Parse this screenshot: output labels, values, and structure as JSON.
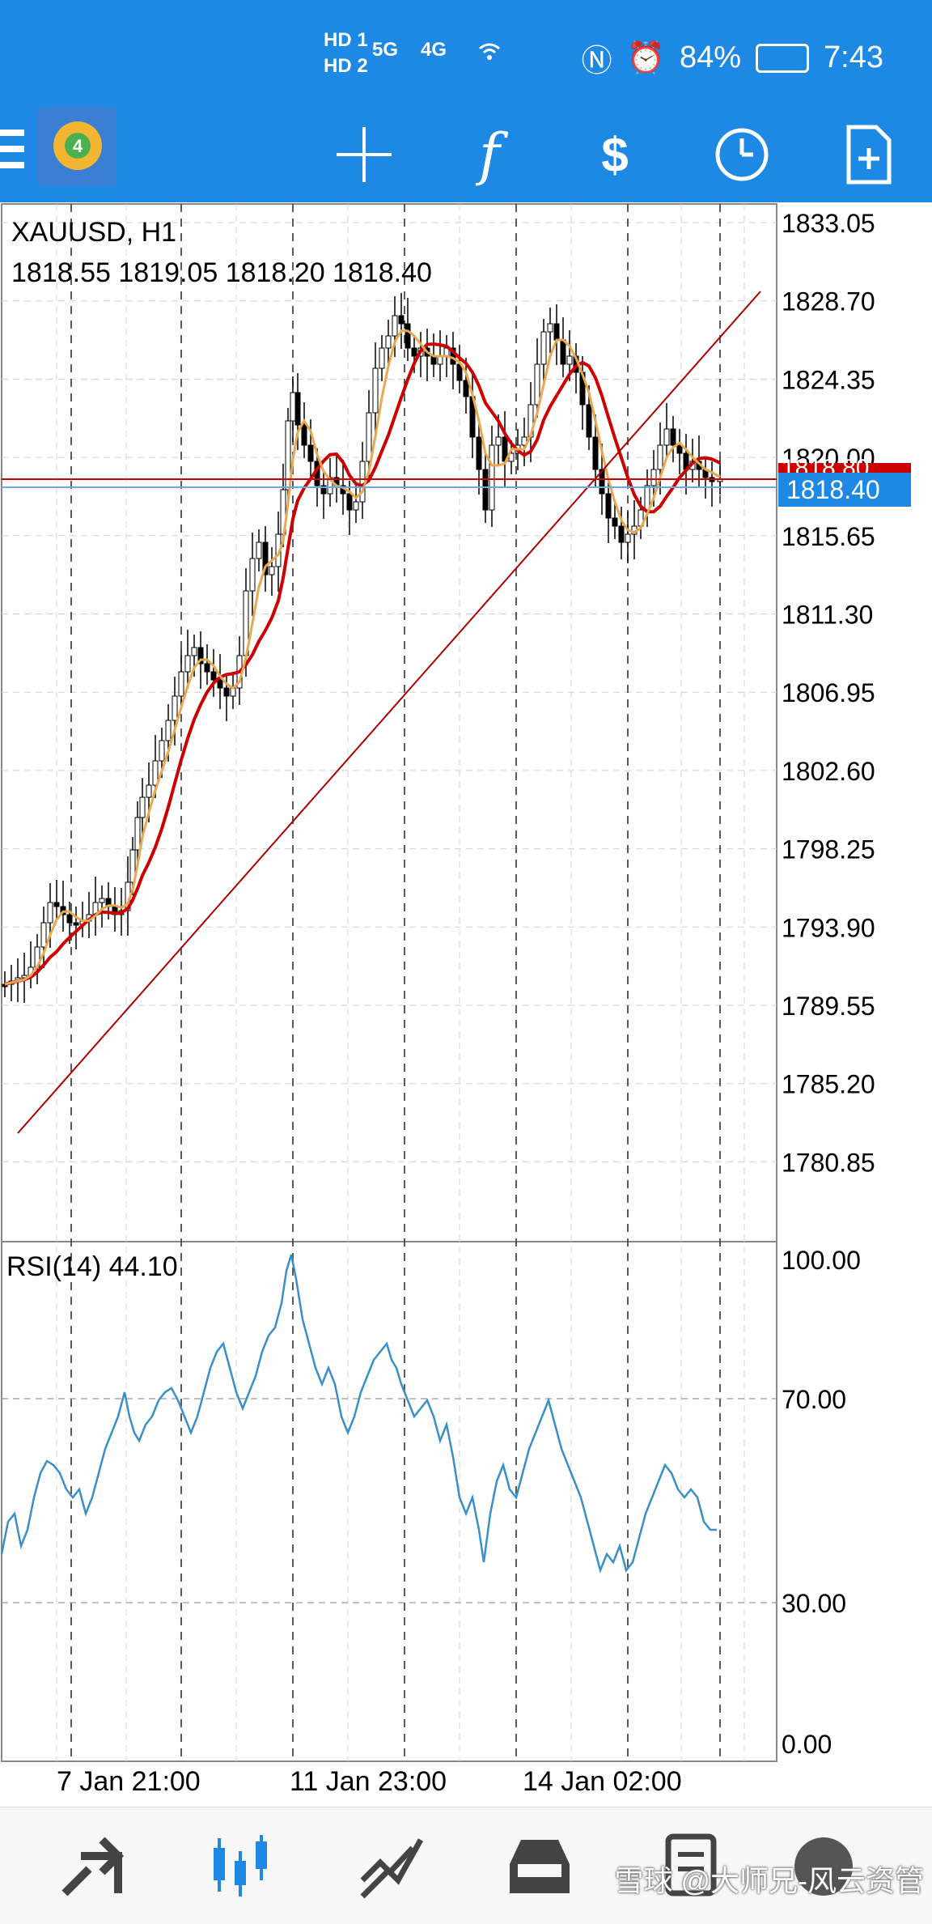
{
  "status_bar": {
    "signal": [
      "HD 1",
      "HD 2",
      "5G",
      "4G"
    ],
    "battery": "84%",
    "time": "7:43"
  },
  "toolbar": {
    "items": [
      "menu",
      "mt-logo",
      "crosshair",
      "indicators",
      "trade",
      "period",
      "new-order"
    ]
  },
  "chart": {
    "symbol": "XAUUSD, H1",
    "ohlc": "1818.55 1819.05 1818.20 1818.40",
    "price_axis": [
      "1833.05",
      "1828.70",
      "1824.35",
      "1820.00",
      "1815.65",
      "1811.30",
      "1806.95",
      "1802.60",
      "1798.25",
      "1793.90",
      "1789.55",
      "1785.20",
      "1780.85"
    ],
    "current_price": "1818.40",
    "red_level_label": "1818.80",
    "time_axis": [
      "7 Jan 21:00",
      "11 Jan 23:00",
      "14 Jan 02:00"
    ],
    "rsi_label": "RSI(14) 44.10",
    "rsi_axis": [
      "100.00",
      "70.00",
      "30.00",
      "0.00"
    ],
    "colors": {
      "bar_up": "#ffffff",
      "bar_down": "#000000",
      "ma_slow": "#cc0000",
      "ma_fast": "#e8a850",
      "trendline": "#aa0000",
      "bid_line": "#1e88e5",
      "rsi_line": "#3a8fc8"
    }
  },
  "bottom_nav": {
    "items": [
      "quotes",
      "charts",
      "trade",
      "history",
      "messages",
      "settings"
    ]
  },
  "watermark": "雪球 @大师兄-风云资管"
}
